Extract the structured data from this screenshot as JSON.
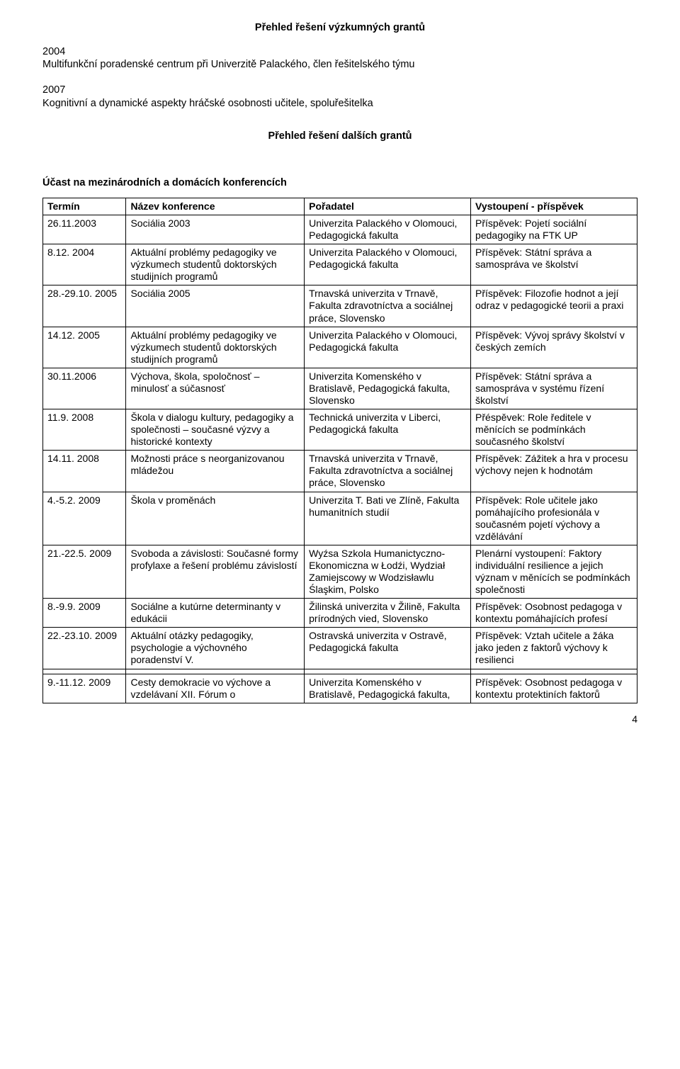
{
  "heading_research": "Přehled řešení výzkumných grantů",
  "grant1_year": "2004",
  "grant1_text": "Multifunkční poradenské centrum při Univerzitě Palackého, člen řešitelského týmu",
  "grant2_year": "2007",
  "grant2_text": "Kognitivní a dynamické aspekty hráčské osobnosti učitele, spoluřešitelka",
  "heading_other": "Přehled řešení dalších grantů",
  "heading_conf": "Účast na mezinárodních a domácích konferencích",
  "table_headers": {
    "term": "Termín",
    "name": "Název konference",
    "org": "Pořadatel",
    "talk": "Vystoupení - příspěvek"
  },
  "rows": [
    {
      "term": "26.11.2003",
      "name": "Sociália 2003",
      "org": "Univerzita Palackého v Olomouci, Pedagogická fakulta",
      "talk": "Příspěvek: Pojetí sociální pedagogiky na FTK UP"
    },
    {
      "term": "8.12. 2004",
      "name": "Aktuální problémy pedagogiky ve výzkumech studentů doktorských studijních programů",
      "org": "Univerzita Palackého v Olomouci, Pedagogická fakulta",
      "talk": "Příspěvek: Státní správa a samospráva ve školství"
    },
    {
      "term": "28.-29.10. 2005",
      "name": "Sociália 2005",
      "org": "Trnavská univerzita v Trnavě, Fakulta zdravotníctva a sociálnej práce, Slovensko",
      "talk": "Příspěvek: Filozofie hodnot a její odraz v pedagogické teorii a praxi"
    },
    {
      "term": "14.12. 2005",
      "name": "Aktuální problémy pedagogiky ve výzkumech studentů doktorských studijních programů",
      "org": "Univerzita Palackého v Olomouci, Pedagogická fakulta",
      "talk": "Příspěvek: Vývoj správy školství v českých zemích"
    },
    {
      "term": "30.11.2006",
      "name": "Výchova, škola, spoločnosť – minulosť a súčasnosť",
      "org": "Univerzita Komenského v Bratislavě, Pedagogická fakulta, Slovensko",
      "talk": "Příspěvek: Státní správa a samospráva v systému řízení školství"
    },
    {
      "term": "11.9. 2008",
      "name": "Škola v dialogu kultury, pedagogiky a společnosti – současné výzvy a historické kontexty",
      "org": "Technická univerzita v Liberci, Pedagogická fakulta",
      "talk": "Přéspěvek: Role ředitele v měnících se podmínkách současného školství"
    },
    {
      "term": "14.11. 2008",
      "name": "Možnosti práce s neorganizovanou mládežou",
      "org": "Trnavská univerzita v Trnavě, Fakulta zdravotníctva a sociálnej práce, Slovensko",
      "talk": "Příspěvek: Zážitek a hra v procesu výchovy nejen k hodnotám"
    },
    {
      "term": "4.-5.2. 2009",
      "name": "Škola v proměnách",
      "org": "Univerzita T. Bati ve Zlíně, Fakulta humanitních studií",
      "talk": "Příspěvek: Role učitele jako pomáhajícího profesionála v současném pojetí výchovy a vzdělávání"
    },
    {
      "term": "21.-22.5. 2009",
      "name": "Svoboda a závislosti: Současné formy profylaxe a řešení problému závislostí",
      "org": "Wyźsa Szkola Humanictyczno-Ekonomiczna w Łodźi, Wydział Zamiejscowy w Wodzisławlu Ślaşkim, Polsko",
      "talk": "Plenární vystoupení: Faktory individuální resilience a jejich význam v měnících se podmínkách společnosti"
    },
    {
      "term": "8.-9.9. 2009",
      "name": "Sociálne a kutúrne determinanty v edukácii",
      "org": "Žilinská univerzita v  Žilině, Fakulta prírodných vied, Slovensko",
      "talk": "Příspěvek: Osobnost pedagoga v kontextu pomáhajících profesí"
    },
    {
      "term": "22.-23.10. 2009",
      "name": "Aktuální otázky pedagogiky, psychologie a výchovného poradenství V.",
      "org": "Ostravská univerzita v Ostravě, Pedagogická fakulta",
      "talk": "Příspěvek: Vztah učitele a žáka jako jeden z faktorů výchovy k resilienci"
    },
    {
      "term": "9.-11.12. 2009",
      "name": "Cesty demokracie vo výchove a vzdelávaní XII. Fórum o",
      "org": "Univerzita Komenského v Bratislavě, Pedagogická fakulta,",
      "talk": "Příspěvek: Osobnost pedagoga v kontextu protektiních faktorů"
    }
  ],
  "page_number": "4"
}
